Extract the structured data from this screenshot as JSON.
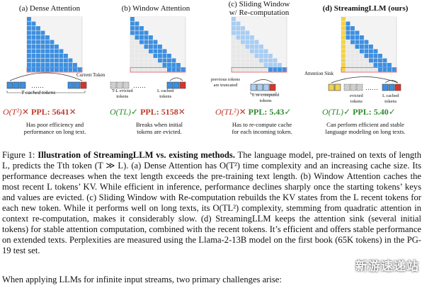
{
  "figure": {
    "panels": [
      {
        "title_line1": "(a) Dense Attention",
        "title_line2": "",
        "metric_complexity": "O(T²)",
        "metric_mark": "✕",
        "ppl_label": "PPL: 5641",
        "ppl_mark": "✕",
        "desc_line1": "Has poor efficiency and",
        "desc_line2": "performance on long text.",
        "label_main": "T cached tokens",
        "label_extra": "Current Token"
      },
      {
        "title_line1": "(b) Window Attention",
        "title_line2": "",
        "metric_complexity": "O(TL)",
        "metric_mark": "✓",
        "ppl_label": "PPL: 5158",
        "ppl_mark": "✕",
        "desc_line1": "Breaks when initial",
        "desc_line2": "tokens are evicted.",
        "label_main": "L cached",
        "label_main2": "tokens",
        "label_extra": "T-L evicted",
        "label_extra2": "tokens"
      },
      {
        "title_line1": "(c) Sliding Window",
        "title_line2": "w/ Re-computation",
        "metric_complexity": "O(TL²)",
        "metric_mark": "✕",
        "ppl_label": "PPL: 5.43",
        "ppl_mark": "✓",
        "desc_line1": "Has to re-compute cache",
        "desc_line2": "for each incoming token.",
        "label_main": "L re-computed",
        "label_main2": "tokens",
        "label_extra": "previous tokens",
        "label_extra2": "are truncated"
      },
      {
        "title_line1": "(d) StreamingLLM (ours)",
        "title_line2": "",
        "metric_complexity": "O(TL)",
        "metric_mark": "✓",
        "ppl_label": "PPL: 5.40",
        "ppl_mark": "✓",
        "desc_line1": "Can perform efficient and stable",
        "desc_line2": "language modeling on long texts.",
        "label_main": "L cached",
        "label_main2": "tokens",
        "label_extra": "evicted",
        "label_extra2": "tokens",
        "label_sink": "Attention Sink"
      }
    ]
  },
  "caption": {
    "label": "Figure 1:",
    "title": "Illustration of StreamingLLM vs. existing methods.",
    "lines": [
      "The language model, pre-trained on",
      "texts of length L, predicts the Tth token (T ≫ L). (a) Dense Attention has O(T²) time complexity",
      "and an increasing cache size. Its performance decreases when the text length exceeds the pre-training",
      "text length. (b) Window Attention caches the most recent L tokens’ KV. While efficient in inference,",
      "performance declines sharply once the starting tokens’ keys and values are evicted. (c) Sliding",
      "Window with Re-computation rebuilds the KV states from the L recent tokens for each new token.",
      "While it performs well on long texts, its O(TL²) complexity, stemming from quadratic attention",
      "in context re-computation, makes it considerably slow. (d) StreamingLLM keeps the attention sink",
      "(several initial tokens) for stable attention computation, combined with the recent tokens. It’s efficient",
      "and offers stable performance on extended texts. Perplexities are measured using the Llama-2-13B",
      "model on the first book (65K tokens) in the PG-19 test set."
    ]
  },
  "body_text": "When applying LLMs for infinite input streams, two primary challenges arise:",
  "watermark": "新游速递站",
  "colors": {
    "blue": "#3d8fe0",
    "light_blue": "#a9cdf3",
    "grey": "#cfcfcf",
    "yellow": "#f2d24a",
    "red": "#d9342b",
    "green": "#2e8b2e",
    "red_text": "#c0392b"
  }
}
